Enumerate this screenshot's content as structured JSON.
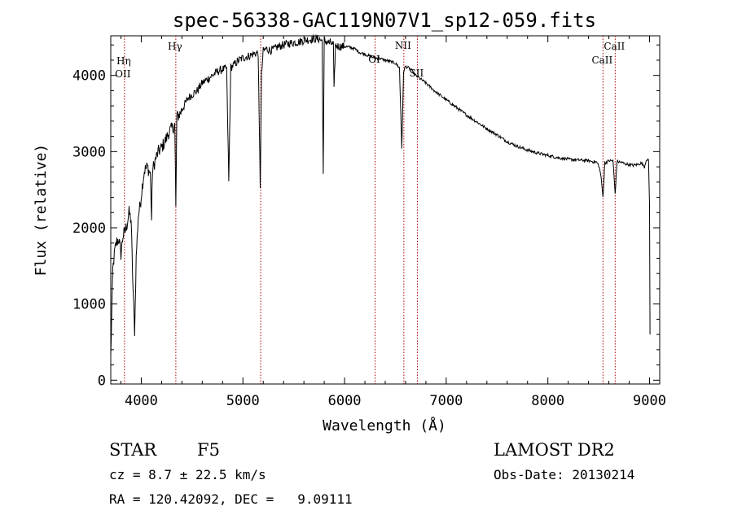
{
  "title": "spec-56338-GAC119N07V1_sp12-059.fits",
  "chart_data": {
    "type": "line",
    "title": "spec-56338-GAC119N07V1_sp12-059.fits",
    "xlabel": "Wavelength (Å)",
    "ylabel": "Flux (relative)",
    "xlim": [
      3700,
      9100
    ],
    "ylim": [
      -50,
      4520
    ],
    "xticks": [
      4000,
      5000,
      6000,
      7000,
      8000,
      9000
    ],
    "xtick_labels": [
      "4000",
      "5000",
      "6000",
      "7000",
      "8000",
      "9000"
    ],
    "yticks": [
      0,
      1000,
      2000,
      3000,
      4000
    ],
    "ytick_labels": [
      "0",
      "1000",
      "2000",
      "3000",
      "4000"
    ],
    "grid": false,
    "series": [
      {
        "color": "#000000",
        "x": [
          3700,
          3720,
          3740,
          3760,
          3780,
          3800,
          3820,
          3840,
          3860,
          3880,
          3900,
          3920,
          3935,
          3950,
          3970,
          3990,
          4010,
          4030,
          4060,
          4090,
          4101,
          4110,
          4140,
          4170,
          4200,
          4240,
          4270,
          4300,
          4330,
          4340,
          4350,
          4380,
          4420,
          4460,
          4500,
          4550,
          4600,
          4650,
          4700,
          4750,
          4800,
          4840,
          4861,
          4880,
          4920,
          4960,
          5000,
          5050,
          5100,
          5150,
          5170,
          5183,
          5200,
          5230,
          5270,
          5300,
          5350,
          5400,
          5450,
          5500,
          5550,
          5600,
          5650,
          5700,
          5750,
          5780,
          5790,
          5800,
          5830,
          5870,
          5890,
          5896,
          5910,
          5950,
          6000,
          6050,
          6100,
          6150,
          6200,
          6250,
          6300,
          6350,
          6400,
          6450,
          6500,
          6540,
          6563,
          6580,
          6600,
          6650,
          6700,
          6800,
          6900,
          7000,
          7100,
          7200,
          7300,
          7400,
          7500,
          7600,
          7700,
          7800,
          7900,
          8000,
          8100,
          8200,
          8300,
          8400,
          8480,
          8500,
          8520,
          8542,
          8560,
          8600,
          8640,
          8662,
          8680,
          8720,
          8760,
          8800,
          8840,
          8880,
          8920,
          8950,
          8970,
          8990,
          9000,
          9005
        ],
        "y": [
          300,
          1450,
          1700,
          1820,
          1850,
          1650,
          1900,
          1950,
          2050,
          2200,
          2100,
          1150,
          650,
          1600,
          2150,
          2300,
          2550,
          2750,
          2800,
          2700,
          2100,
          2750,
          2900,
          3000,
          3050,
          3150,
          3250,
          3300,
          3350,
          2250,
          3450,
          3500,
          3600,
          3700,
          3750,
          3800,
          3900,
          3950,
          4000,
          4050,
          4080,
          4090,
          2600,
          4100,
          4150,
          4200,
          4230,
          4250,
          4280,
          4300,
          2550,
          4000,
          4320,
          4350,
          4330,
          4340,
          4380,
          4400,
          4420,
          4430,
          4440,
          4460,
          4470,
          4480,
          4480,
          4450,
          2700,
          4450,
          4440,
          4420,
          4400,
          3800,
          4390,
          4380,
          4380,
          4370,
          4350,
          4300,
          4280,
          4250,
          4230,
          4220,
          4200,
          4180,
          4160,
          4100,
          3050,
          4050,
          4120,
          4080,
          4000,
          3900,
          3780,
          3680,
          3580,
          3480,
          3390,
          3300,
          3220,
          3130,
          3070,
          3020,
          2980,
          2950,
          2920,
          2900,
          2890,
          2880,
          2860,
          2820,
          2700,
          2400,
          2850,
          2880,
          2880,
          2450,
          2870,
          2860,
          2840,
          2830,
          2820,
          2830,
          2850,
          2800,
          2900,
          2880,
          2300,
          600
        ]
      }
    ],
    "reference_lines": [
      {
        "x": 3835,
        "label": "Hη",
        "label2": "OII"
      },
      {
        "x": 4340,
        "label": "Hγ"
      },
      {
        "x": 5175,
        "label": ""
      },
      {
        "x": 6300,
        "label": "OI"
      },
      {
        "x": 6583,
        "label": "NII"
      },
      {
        "x": 6716,
        "label": "SII"
      },
      {
        "x": 8542,
        "label": "CaII"
      },
      {
        "x": 8662,
        "label": "CaII"
      }
    ],
    "reference_color": "#aa0000"
  },
  "info": {
    "class": "STAR",
    "subclass": "F5",
    "survey": "LAMOST DR2",
    "cz": "cz = 8.7 ± 22.5 km/s",
    "obs_date": "Obs-Date: 20130214",
    "radec": "RA = 120.42092, DEC =   9.09111"
  }
}
